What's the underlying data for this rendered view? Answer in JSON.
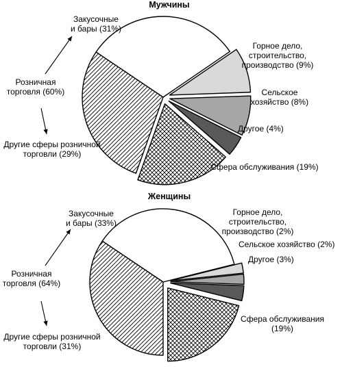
{
  "chart_data": [
    {
      "type": "pie",
      "title": "Мужчины",
      "group_label": [
        "Розничная",
        "торговля (60%)"
      ],
      "slices": [
        {
          "label": [
            "Закусочные",
            "и бары (31%)"
          ],
          "value": 31,
          "pattern": "white",
          "exploded": false
        },
        {
          "label": [
            "Горное дело,",
            "строительство,",
            "производство (9%)"
          ],
          "value": 9,
          "pattern": "light-gray",
          "exploded": true
        },
        {
          "label": [
            "Сельское",
            "хозяйство (8%)"
          ],
          "value": 8,
          "pattern": "mid-gray",
          "exploded": true
        },
        {
          "label": [
            "Другое (4%)"
          ],
          "value": 4,
          "pattern": "dark-gray",
          "exploded": true
        },
        {
          "label": [
            "Сфера обслуживания (19%)"
          ],
          "value": 19,
          "pattern": "crosshatch",
          "exploded": true
        },
        {
          "label": [
            "Другие сферы розничной",
            "торговли (29%)"
          ],
          "value": 29,
          "pattern": "diagonal",
          "exploded": false
        }
      ]
    },
    {
      "type": "pie",
      "title": "Женщины",
      "group_label": [
        "Розничная",
        "торговля (64%)"
      ],
      "slices": [
        {
          "label": [
            "Закусочные",
            "и бары (33%)"
          ],
          "value": 33,
          "pattern": "white",
          "exploded": false
        },
        {
          "label": [
            "Горное дело,",
            "строительство,",
            "производство (2%)"
          ],
          "value": 2,
          "pattern": "light-gray",
          "exploded": true
        },
        {
          "label": [
            "Сельское хозяйство (2%)"
          ],
          "value": 2,
          "pattern": "mid-gray",
          "exploded": true
        },
        {
          "label": [
            "Другое (3%)"
          ],
          "value": 3,
          "pattern": "dark-gray",
          "exploded": true
        },
        {
          "label": [
            "Сфера обслуживания",
            "(19%)"
          ],
          "value": 19,
          "pattern": "crosshatch",
          "exploded": true
        },
        {
          "label": [
            "Другие сферы розничной",
            "торговли (31%)"
          ],
          "value": 31,
          "pattern": "diagonal",
          "exploded": false
        }
      ]
    }
  ],
  "colors": {
    "white": "#ffffff",
    "light-gray": "#d9d9d9",
    "mid-gray": "#a6a6a6",
    "dark-gray": "#595959",
    "outline": "#000000"
  }
}
